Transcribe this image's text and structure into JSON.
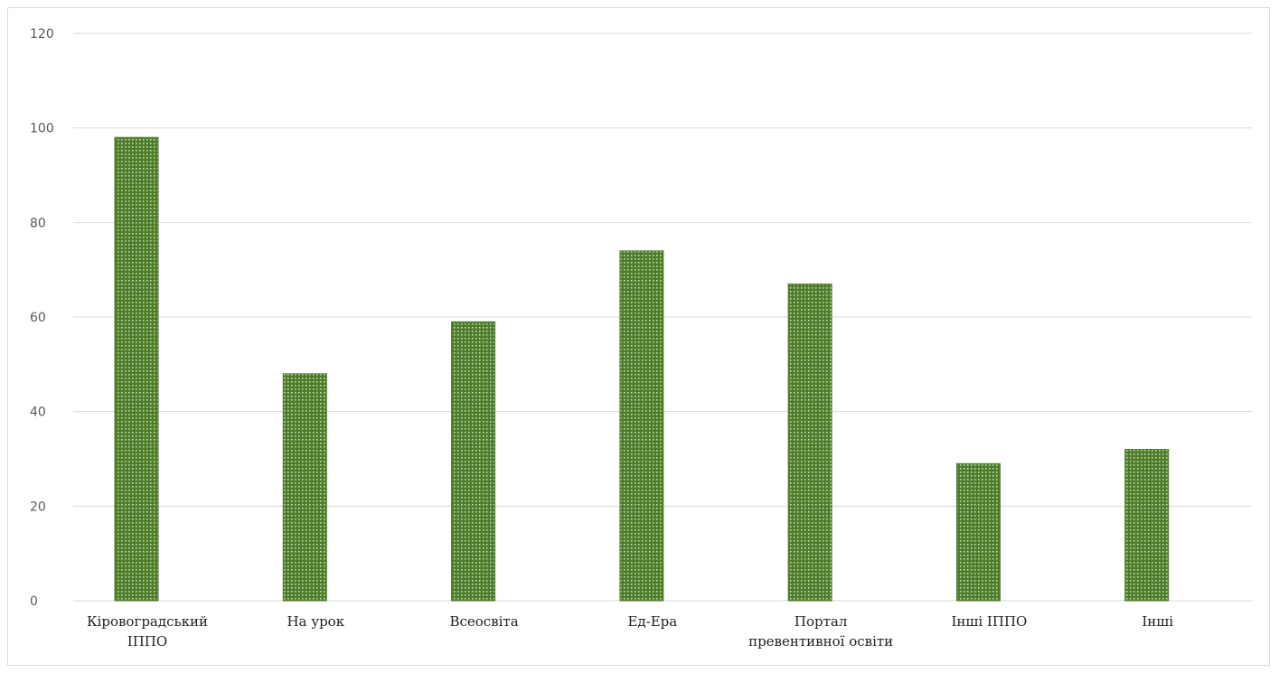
{
  "chart_data": {
    "type": "bar",
    "categories": [
      [
        "Кіровоградський",
        "ІППО"
      ],
      [
        "На урок"
      ],
      [
        "Всеосвіта"
      ],
      [
        "Ед-Ера"
      ],
      [
        "Портал",
        "превентивної освіти"
      ],
      [
        "Інші ІППО"
      ],
      [
        "Інші"
      ]
    ],
    "values": [
      98,
      48,
      59,
      74,
      67,
      29,
      32
    ],
    "ylim": [
      0,
      120
    ],
    "yticks": [
      0,
      20,
      40,
      60,
      80,
      100,
      120
    ],
    "grid": true,
    "legend": "none",
    "bar_color": "#4e7d2b",
    "bar_pattern": "dotted"
  }
}
